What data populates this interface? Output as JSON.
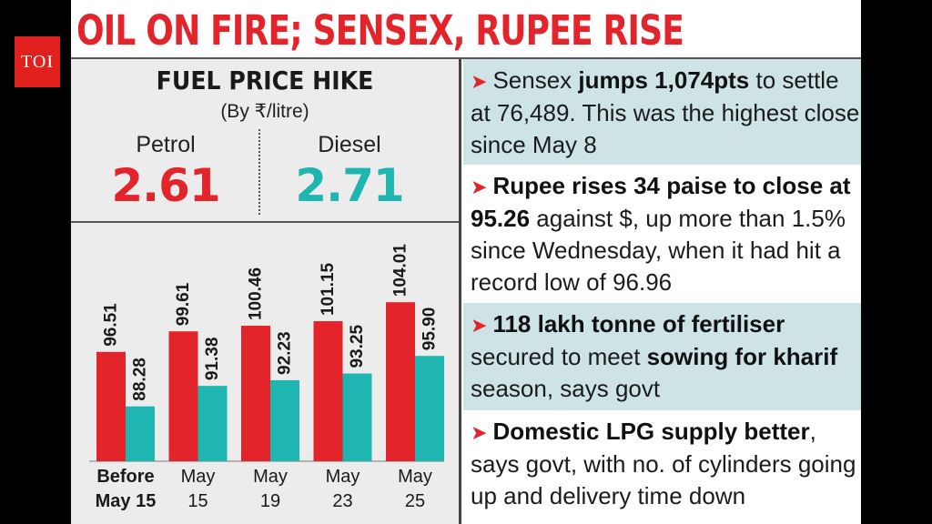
{
  "logo": "TOI",
  "headline": "OIL ON FIRE; SENSEX, RUPEE RISE",
  "fuel_panel": {
    "title": "FUEL PRICE HIKE",
    "unit": "(By ₹/litre)",
    "petrol_label": "Petrol",
    "petrol_value": "2.61",
    "diesel_label": "Diesel",
    "diesel_value": "2.71"
  },
  "colors": {
    "petrol": "#e3242b",
    "diesel": "#1fb5b0",
    "headline": "#e3242b",
    "teal_bg": "#cde3e6"
  },
  "chart_data": {
    "type": "bar",
    "categories": [
      [
        "Before",
        "May 15"
      ],
      [
        "May",
        "15"
      ],
      [
        "May",
        "19"
      ],
      [
        "May",
        "23"
      ],
      [
        "May",
        "25"
      ]
    ],
    "series": [
      {
        "name": "Petrol",
        "values": [
          96.51,
          99.61,
          100.46,
          101.15,
          104.01
        ]
      },
      {
        "name": "Diesel",
        "values": [
          88.28,
          91.38,
          92.23,
          93.25,
          95.9
        ]
      }
    ],
    "labels": [
      [
        "96.51",
        "99.61",
        "100.46",
        "101.15",
        "104.01"
      ],
      [
        "88.28",
        "91.38",
        "92.23",
        "93.25",
        "95.90"
      ]
    ],
    "ylim": [
      80,
      105
    ],
    "grid": false
  },
  "bullets": [
    {
      "segments": [
        {
          "t": "Sensex ",
          "b": false
        },
        {
          "t": "jumps 1,074pts",
          "b": true
        },
        {
          "t": " to settle at 76,489. This was the highest close since May 8",
          "b": false
        }
      ]
    },
    {
      "segments": [
        {
          "t": "Rupee rises 34 paise to close at 95.26",
          "b": true
        },
        {
          "t": " against $, up more than 1.5% since Wednesday, when it had hit a record low of 96.96",
          "b": false
        }
      ]
    },
    {
      "segments": [
        {
          "t": "118 lakh tonne of fertiliser",
          "b": true
        },
        {
          "t": " secured to meet ",
          "b": false
        },
        {
          "t": "sowing for kharif",
          "b": true
        },
        {
          "t": " season, says govt",
          "b": false
        }
      ]
    },
    {
      "segments": [
        {
          "t": "Domestic LPG supply better",
          "b": true
        },
        {
          "t": ", says govt, with no. of cylinders going up and delivery time down",
          "b": false
        }
      ]
    }
  ]
}
